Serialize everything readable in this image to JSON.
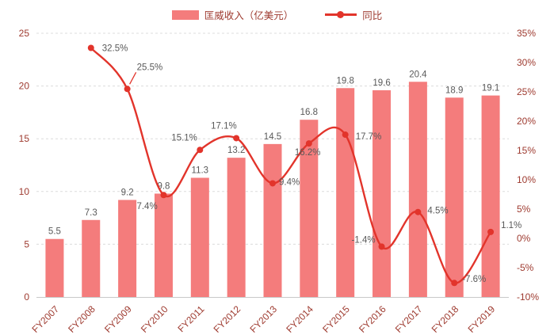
{
  "legend": {
    "bar_label": "匡威收入（亿美元）",
    "line_label": "同比"
  },
  "chart_data": {
    "type": "bar",
    "subtype": "combo-bar-line",
    "title": "",
    "categories": [
      "FY2007",
      "FY2008",
      "FY2009",
      "FY2010",
      "FY2011",
      "FY2012",
      "FY2013",
      "FY2014",
      "FY2015",
      "FY2016",
      "FY2017",
      "FY2018",
      "FY2019"
    ],
    "series": [
      {
        "name": "匡威收入（亿美元）",
        "type": "bar",
        "axis": "left",
        "values": [
          5.5,
          7.3,
          9.2,
          9.8,
          11.3,
          13.2,
          14.5,
          16.8,
          19.8,
          19.6,
          20.4,
          18.9,
          19.1
        ],
        "labels": [
          "5.5",
          "7.3",
          "9.2",
          "9.8",
          "11.3",
          "13.2",
          "14.5",
          "16.8",
          "19.8",
          "19.6",
          "20.4",
          "18.9",
          "19.1"
        ]
      },
      {
        "name": "同比",
        "type": "line",
        "axis": "right",
        "values": [
          null,
          32.5,
          25.5,
          7.4,
          15.1,
          17.1,
          9.4,
          16.2,
          17.7,
          -1.4,
          4.5,
          -7.6,
          1.1
        ],
        "labels": [
          null,
          "32.5%",
          "25.5%",
          "7.4%",
          "15.1%",
          "17.1%",
          "9.4%",
          "16.2%",
          "17.7%",
          "-1.4%",
          "4.5%",
          "-7.6%",
          "1.1%"
        ]
      }
    ],
    "left_axis": {
      "min": 0,
      "max": 25,
      "tick_values": [
        0,
        5,
        10,
        15,
        20,
        25
      ],
      "tick_labels": [
        "0",
        "5",
        "10",
        "15",
        "20",
        "25"
      ]
    },
    "right_axis": {
      "min": -10,
      "max": 35,
      "tick_values": [
        -10,
        -5,
        0,
        5,
        10,
        15,
        20,
        25,
        30,
        35
      ],
      "tick_labels": [
        "-10%",
        "-5%",
        "0%",
        "5%",
        "10%",
        "15%",
        "20%",
        "25%",
        "30%",
        "35%"
      ]
    },
    "grid": true,
    "legend_position": "top",
    "colors": {
      "bar": "#F47C7C",
      "line": "#E2342B",
      "axis_label": "#9E3A2F",
      "data_label": "#595959",
      "grid": "#DCDCDC",
      "axis_line": "#C8C8C8"
    }
  }
}
